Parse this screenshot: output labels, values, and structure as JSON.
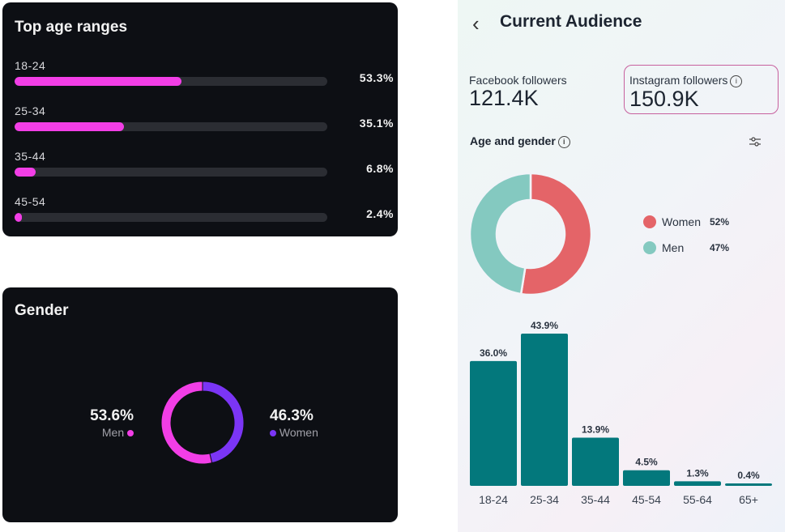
{
  "chart_data": [
    {
      "type": "bar",
      "orientation": "horizontal",
      "title": "Top age ranges",
      "categories": [
        "18-24",
        "25-34",
        "35-44",
        "45-54"
      ],
      "values": [
        53.3,
        35.1,
        6.8,
        2.4
      ],
      "value_labels": [
        "53.3%",
        "35.1%",
        "6.8%",
        "2.4%"
      ],
      "xlim": [
        0,
        100
      ],
      "color": "#f23ee6",
      "track_color": "#2b2d33"
    },
    {
      "type": "pie",
      "donut": true,
      "title": "Gender",
      "series": [
        {
          "name": "Men",
          "value": 53.6,
          "label": "53.6%",
          "color": "#f23ee6"
        },
        {
          "name": "Women",
          "value": 46.3,
          "label": "46.3%",
          "color": "#7b35f5"
        }
      ]
    },
    {
      "type": "pie",
      "donut": true,
      "title": "Age and gender",
      "series": [
        {
          "name": "Women",
          "value": 52,
          "label": "52%",
          "color": "#e46468"
        },
        {
          "name": "Men",
          "value": 47,
          "label": "47%",
          "color": "#84c9c0"
        }
      ]
    },
    {
      "type": "bar",
      "orientation": "vertical",
      "title": "",
      "categories": [
        "18-24",
        "25-34",
        "35-44",
        "45-54",
        "55-64",
        "65+"
      ],
      "values": [
        36.0,
        43.9,
        13.9,
        4.5,
        1.3,
        0.4
      ],
      "value_labels": [
        "36.0%",
        "43.9%",
        "13.9%",
        "4.5%",
        "1.3%",
        "0.4%"
      ],
      "ylim": [
        0,
        43.9
      ],
      "color": "#03787c",
      "grid": false
    }
  ],
  "right_panel": {
    "title": "Current Audience",
    "back_icon": "chevron-left-icon",
    "facebook": {
      "label": "Facebook followers",
      "value": "121.4K"
    },
    "instagram": {
      "label": "Instagram followers",
      "value": "150.9K",
      "info_icon": "info-icon"
    },
    "section_title": "Age and gender",
    "filter_icon": "sliders-icon"
  }
}
